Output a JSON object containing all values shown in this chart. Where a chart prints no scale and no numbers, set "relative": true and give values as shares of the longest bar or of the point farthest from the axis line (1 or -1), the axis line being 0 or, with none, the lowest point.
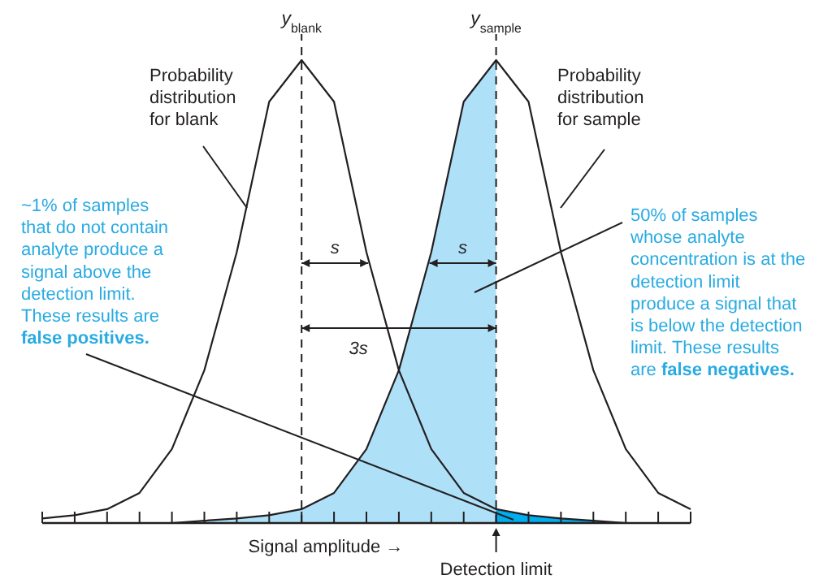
{
  "chart_data": {
    "type": "line",
    "relative": true,
    "xlabel": "Signal amplitude →",
    "categories": [
      null,
      null,
      null,
      null,
      null,
      null,
      null,
      null,
      null,
      null,
      null,
      null,
      null,
      null,
      null,
      null,
      null,
      null,
      null,
      null,
      null
    ],
    "series": [
      {
        "type": "area",
        "color": "#aee0f8",
        "values": [
          null,
          null,
          null,
          null,
          0,
          0.005,
          0.01,
          0.017,
          0.03,
          0.065,
          0.16,
          0.33,
          0.585,
          0.91,
          1,
          null,
          null,
          null,
          null,
          null,
          null
        ]
      },
      {
        "type": "area",
        "color": "#00aeef",
        "values": [
          null,
          null,
          null,
          null,
          null,
          null,
          null,
          null,
          null,
          null,
          null,
          null,
          null,
          null,
          0.03,
          0.017,
          0.01,
          0.005,
          0,
          null,
          null
        ]
      },
      {
        "type": "line",
        "color": "#231f20",
        "values": [
          0.01,
          0.017,
          0.03,
          0.065,
          0.16,
          0.33,
          0.585,
          0.91,
          1,
          0.91,
          0.585,
          0.33,
          0.16,
          0.065,
          0.03,
          0.017,
          0.01,
          0.005,
          0,
          null,
          null
        ]
      },
      {
        "type": "line",
        "color": "#231f20",
        "values": [
          null,
          null,
          null,
          null,
          0,
          0.005,
          0.01,
          0.017,
          0.03,
          0.065,
          0.16,
          0.33,
          0.585,
          0.91,
          1,
          0.91,
          0.585,
          0.33,
          0.16,
          0.065,
          0.03
        ]
      }
    ],
    "annotations": [
      "y$_{blank}$",
      "y$_{sample}$",
      "Probability distribution for blank",
      "Probability distribution for sample",
      "~1% of samples that do not contain analyte produce a signal above the detection limit. These results are",
      "false positives.",
      "50% of samples whose analyte concentration is at the detection limit produce a signal that is below the detection limit. These results are",
      "false negatives.",
      "s",
      "s",
      "3s",
      "Detection limit"
    ]
  }
}
